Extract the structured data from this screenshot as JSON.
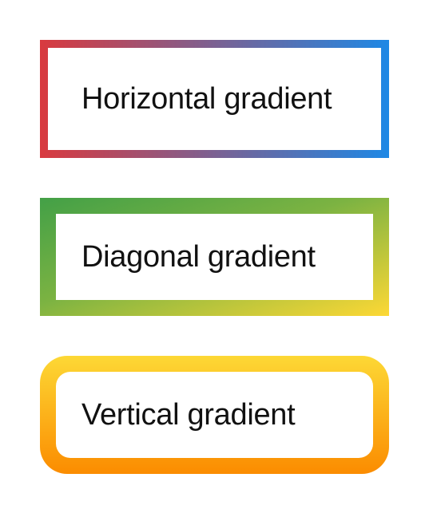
{
  "boxes": [
    {
      "label": "Horizontal gradient",
      "colors": [
        "#d93a3f",
        "#1e88e5"
      ]
    },
    {
      "label": "Diagonal gradient",
      "colors": [
        "#43a047",
        "#7cb342",
        "#fdd835"
      ]
    },
    {
      "label": "Vertical gradient",
      "colors": [
        "#fdd835",
        "#fb8c00"
      ]
    }
  ]
}
